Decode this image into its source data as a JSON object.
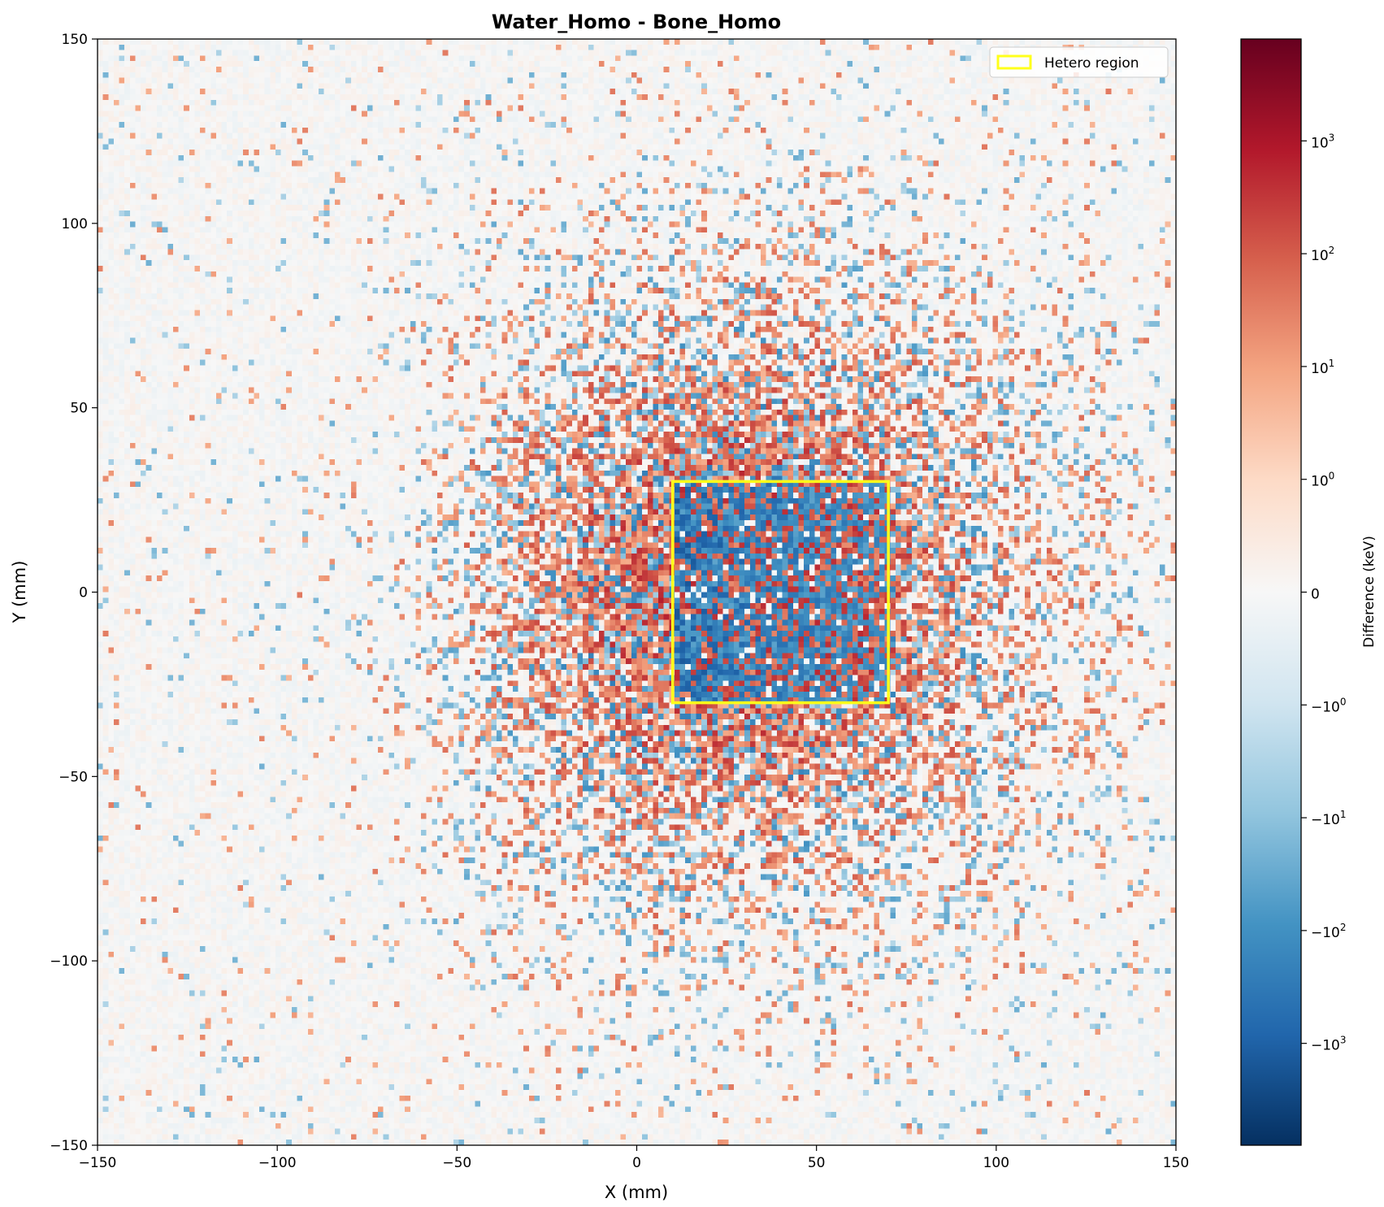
{
  "chart_data": {
    "type": "heatmap",
    "title": "Water_Homo - Bone_Homo",
    "xlabel": "X (mm)",
    "ylabel": "Y (mm)",
    "xlim": [
      -150,
      150
    ],
    "ylim": [
      -150,
      150
    ],
    "x_ticks": [
      -150,
      -100,
      -50,
      0,
      50,
      100,
      150
    ],
    "x_tick_labels": [
      "−150",
      "−100",
      "−50",
      "0",
      "50",
      "100",
      "150"
    ],
    "y_ticks": [
      150,
      100,
      50,
      0,
      -50,
      -100,
      -150
    ],
    "y_tick_labels": [
      "150",
      "100",
      "50",
      "0",
      "−50",
      "−100",
      "−150"
    ],
    "grid": false,
    "colormap": "RdBu_r",
    "colorbar": {
      "label": "Difference (keV)",
      "scale": "symlog",
      "linthresh": 1,
      "range": [
        -8000,
        8000
      ],
      "ticks": [
        {
          "value": 1000,
          "label": "10",
          "exp": "3"
        },
        {
          "value": 100,
          "label": "10",
          "exp": "2"
        },
        {
          "value": 10,
          "label": "10",
          "exp": "1"
        },
        {
          "value": 1,
          "label": "10",
          "exp": "0"
        },
        {
          "value": 0,
          "label": "0",
          "exp": ""
        },
        {
          "value": -1,
          "label": "−10",
          "exp": "0"
        },
        {
          "value": -10,
          "label": "−10",
          "exp": "1"
        },
        {
          "value": -100,
          "label": "−10",
          "exp": "2"
        },
        {
          "value": -1000,
          "label": "−10",
          "exp": "3"
        }
      ]
    },
    "distribution": {
      "description_visible": false,
      "center": [
        30,
        0
      ],
      "spread_mm": 55,
      "bin_size_mm": 1.5
    },
    "hetero_region": {
      "label": "Hetero region",
      "x_range": [
        10,
        70
      ],
      "y_range": [
        -30,
        30
      ],
      "color": "#ffff1a"
    },
    "legend": {
      "placement": "top-right",
      "entries": [
        "Hetero region"
      ]
    }
  }
}
